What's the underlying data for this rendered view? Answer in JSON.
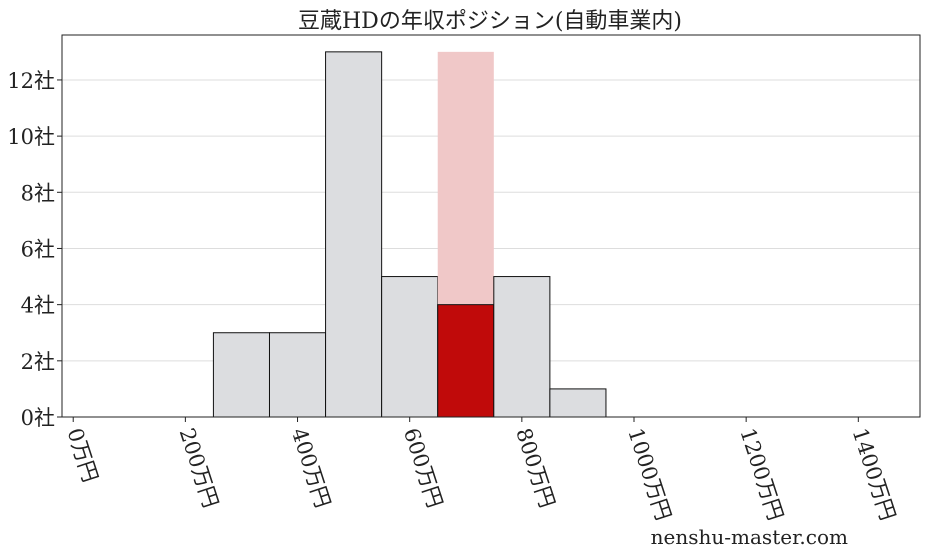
{
  "chart_data": {
    "type": "bar",
    "title": "豆蔵HDの年収ポジション(自動車業内)",
    "bins": [
      [
        250,
        350
      ],
      [
        350,
        450
      ],
      [
        450,
        550
      ],
      [
        550,
        650
      ],
      [
        650,
        750
      ],
      [
        750,
        850
      ],
      [
        850,
        950
      ]
    ],
    "values": [
      3,
      3,
      13,
      5,
      4,
      5,
      1
    ],
    "highlight_index": 4,
    "highlight_background_value": 13,
    "xlim": [
      -20,
      1510
    ],
    "ylim": [
      0,
      13.6
    ],
    "xticks": [
      0,
      200,
      400,
      600,
      800,
      1000,
      1200,
      1400
    ],
    "xtick_labels": [
      "0万円",
      "200万円",
      "400万円",
      "600万円",
      "800万円",
      "1000万円",
      "1200万円",
      "1400万円"
    ],
    "yticks": [
      0,
      2,
      4,
      6,
      8,
      10,
      12
    ],
    "ytick_labels": [
      "0社",
      "2社",
      "4社",
      "6社",
      "8社",
      "10社",
      "12社"
    ],
    "grid": "horizontal",
    "colors": {
      "bar": "#dcdde0",
      "highlight": "#c00a0a",
      "highlight_bg": "#f0c8c8"
    }
  },
  "watermark": "nenshu-master.com"
}
